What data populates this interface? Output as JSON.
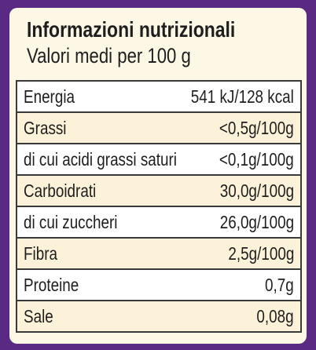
{
  "header": {
    "title": "Informazioni nutrizionali",
    "subtitle": "Valori medi per 100 g"
  },
  "table": {
    "rows": [
      [
        "Energia",
        "541 kJ/128 kcal"
      ],
      [
        "Grassi",
        "<0,5g/100g"
      ],
      [
        "di cui acidi grassi saturi",
        "<0,1g/100g"
      ],
      [
        "Carboidrati",
        "30,0g/100g"
      ],
      [
        "di cui zuccheri",
        "26,0g/100g"
      ],
      [
        "Fibra",
        "2,5g/100g"
      ],
      [
        "Proteine",
        "0,7g"
      ],
      [
        "Sale",
        "0,08g"
      ]
    ]
  }
}
